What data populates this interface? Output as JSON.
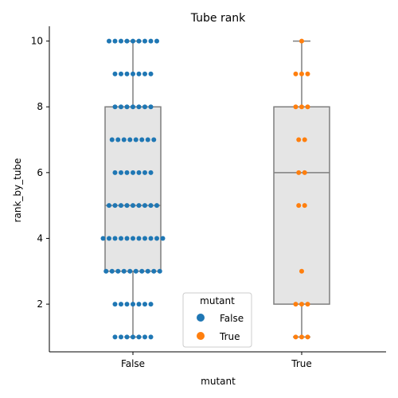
{
  "chart_data": {
    "type": "box-swarm",
    "title": "Tube rank",
    "xlabel": "mutant",
    "ylabel": "rank_by_tube",
    "categories": [
      "False",
      "True"
    ],
    "ylim": [
      0.55,
      10.45
    ],
    "yticks": [
      2,
      4,
      6,
      8,
      10
    ],
    "grid": false,
    "legend": {
      "title": "mutant",
      "position": "bottom-center",
      "entries": [
        {
          "label": "False",
          "color": "#1f77b4"
        },
        {
          "label": "True",
          "color": "#ff7f0e"
        }
      ]
    },
    "boxes": [
      {
        "category": "False",
        "q1": 3,
        "median": 5,
        "q3": 8,
        "whisker_low": 1,
        "whisker_high": 10
      },
      {
        "category": "True",
        "q1": 2,
        "median": 6,
        "q3": 8,
        "whisker_low": 1,
        "whisker_high": 10
      }
    ],
    "series": [
      {
        "name": "False",
        "color": "#1f77b4",
        "counts_by_rank": {
          "1": 7,
          "2": 7,
          "3": 10,
          "4": 11,
          "5": 9,
          "6": 7,
          "7": 8,
          "8": 7,
          "9": 7,
          "10": 9
        }
      },
      {
        "name": "True",
        "color": "#ff7f0e",
        "counts_by_rank": {
          "1": 3,
          "2": 3,
          "3": 1,
          "4": 0,
          "5": 2,
          "6": 2,
          "7": 2,
          "8": 3,
          "9": 3,
          "10": 1
        }
      }
    ]
  }
}
